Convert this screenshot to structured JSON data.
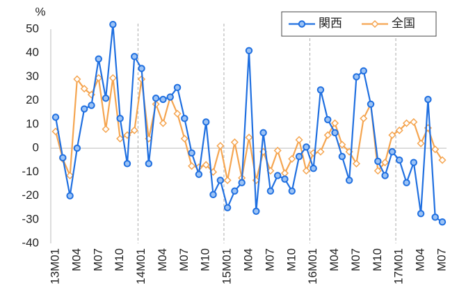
{
  "chart_data": {
    "type": "line",
    "y_unit": "%",
    "categories": [
      "13M01",
      null,
      null,
      "M04",
      null,
      null,
      "M07",
      null,
      null,
      "M10",
      null,
      null,
      "14M01",
      null,
      null,
      "M04",
      null,
      null,
      "M07",
      null,
      null,
      "M10",
      null,
      null,
      "15M01",
      null,
      null,
      "M04",
      null,
      null,
      "M07",
      null,
      null,
      "M10",
      null,
      null,
      "16M01",
      null,
      null,
      "M04",
      null,
      null,
      "M07",
      null,
      null,
      "M10",
      null,
      null,
      "17M01",
      null,
      null,
      "M04",
      null,
      null,
      "M07"
    ],
    "series": [
      {
        "name": "関西",
        "color": "#1f6fe0",
        "marker": "circle",
        "values": [
          13,
          -4,
          -20,
          0,
          16.5,
          18,
          37.5,
          21,
          52,
          12.5,
          -6.5,
          38.5,
          33.5,
          -6.5,
          21,
          20.5,
          21.5,
          25.5,
          12.5,
          -2,
          -11,
          11,
          -19.5,
          -13.5,
          -25,
          -18,
          -14.5,
          41,
          -26.5,
          6.5,
          -18,
          -11.5,
          -13,
          -18,
          -3.5,
          0.5,
          -8.5,
          24.5,
          12,
          6.5,
          -3.5,
          -13.5,
          30,
          32.5,
          18.5,
          -5.5,
          -11.5,
          -1.5,
          -5,
          -14.5,
          -6,
          -27.5,
          20.5,
          -29,
          -31
        ]
      },
      {
        "name": "全国",
        "color": "#f5a550",
        "marker": "diamond",
        "values": [
          7,
          -4.5,
          -11.5,
          29,
          25,
          22.5,
          29.5,
          8,
          29.5,
          4,
          5.5,
          7.5,
          29,
          4,
          18.5,
          10.5,
          21.5,
          14.5,
          4,
          -7.5,
          -8,
          -7,
          -10,
          1,
          -13.5,
          2.5,
          -12.5,
          4.5,
          -13.5,
          -1.5,
          -9.5,
          -1,
          -10.5,
          -4.5,
          3.5,
          -9.5,
          -2,
          -1.5,
          5.5,
          10.5,
          1.5,
          -1.5,
          -6.5,
          12.5,
          18.5,
          -9.5,
          -6,
          5.5,
          7.5,
          10.5,
          11,
          2,
          8.5,
          -0.5,
          -5
        ]
      }
    ],
    "ylim": [
      -40,
      50
    ],
    "yticks": [
      -40,
      -30,
      -20,
      -10,
      0,
      10,
      20,
      30,
      40,
      50
    ],
    "legend": "upper right"
  }
}
